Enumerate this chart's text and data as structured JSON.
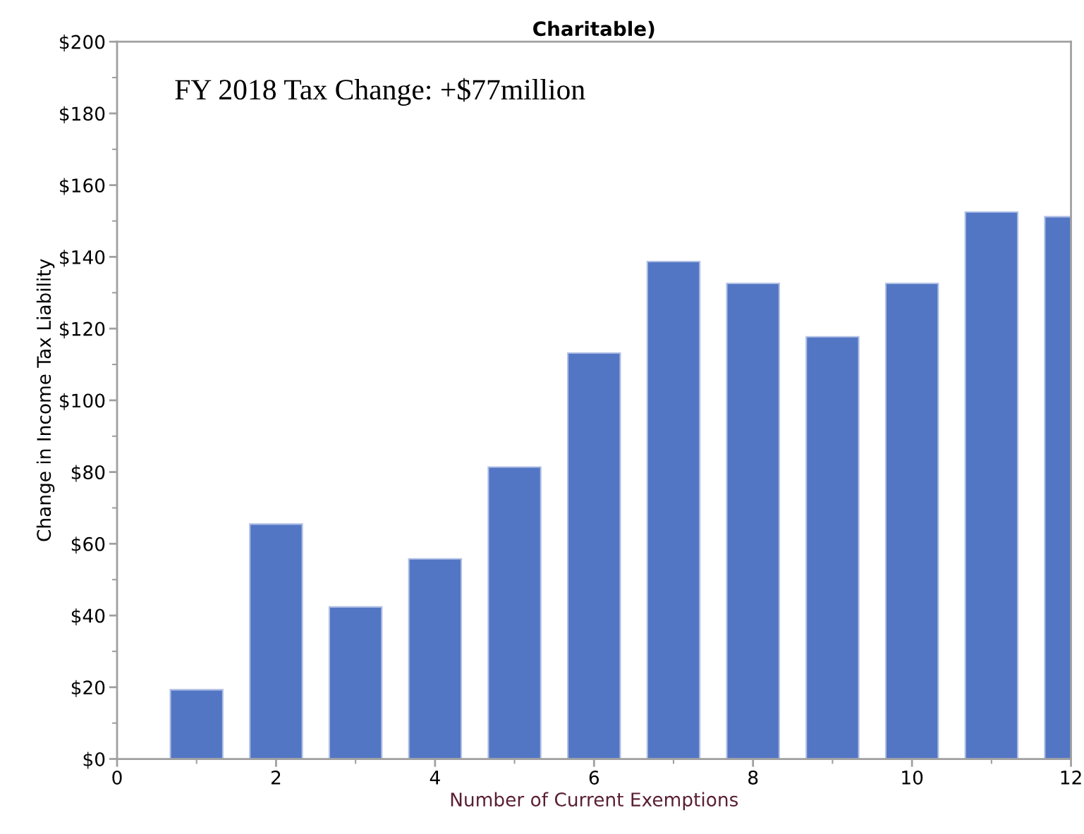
{
  "chart_data": {
    "type": "bar",
    "title": "Charitable)",
    "xlabel": "Number of Current Exemptions",
    "ylabel": "Change in Income Tax Liability",
    "x": [
      1,
      2,
      3,
      4,
      5,
      6,
      7,
      8,
      9,
      10,
      11,
      12
    ],
    "values": [
      19.3,
      65.5,
      42.4,
      55.8,
      81.4,
      113.2,
      138.7,
      132.6,
      117.7,
      132.6,
      152.5,
      151.2
    ],
    "color": "#5276c4",
    "xlim": [
      0,
      12
    ],
    "xticks": [
      0,
      2,
      4,
      6,
      8,
      10,
      12
    ],
    "ylim": [
      0,
      200
    ],
    "yticks": [
      {
        "value": 0,
        "label": "$0"
      },
      {
        "value": 20,
        "label": "$20"
      },
      {
        "value": 40,
        "label": "$40"
      },
      {
        "value": 60,
        "label": "$60"
      },
      {
        "value": 80,
        "label": "$80"
      },
      {
        "value": 100,
        "label": "$100"
      },
      {
        "value": 120,
        "label": "$120"
      },
      {
        "value": 140,
        "label": "$140"
      },
      {
        "value": 160,
        "label": "$160"
      },
      {
        "value": 180,
        "label": "$180"
      },
      {
        "value": 200,
        "label": "$200"
      }
    ],
    "annotations": [
      "FY 2018 Tax Change: +$77million"
    ],
    "grid": false,
    "legend": false
  }
}
